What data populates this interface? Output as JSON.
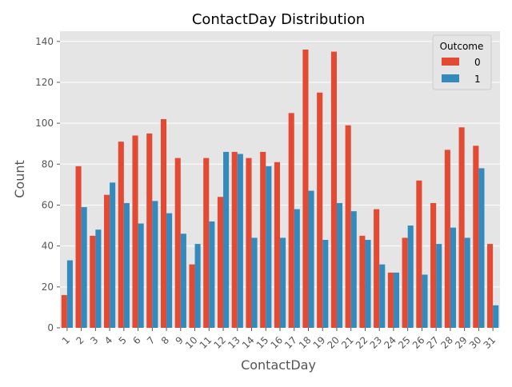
{
  "chart_data": {
    "type": "bar",
    "title": "ContactDay Distribution",
    "xlabel": "ContactDay",
    "ylabel": "Count",
    "ylim": [
      0,
      145
    ],
    "yticks": [
      0,
      20,
      40,
      60,
      80,
      100,
      120,
      140
    ],
    "categories": [
      "1",
      "2",
      "3",
      "4",
      "5",
      "6",
      "7",
      "8",
      "9",
      "10",
      "11",
      "12",
      "13",
      "14",
      "15",
      "16",
      "17",
      "18",
      "19",
      "20",
      "21",
      "22",
      "23",
      "24",
      "25",
      "26",
      "27",
      "28",
      "29",
      "30",
      "31"
    ],
    "series": [
      {
        "name": "0",
        "color": "#E24A33",
        "values": [
          16,
          79,
          45,
          65,
          91,
          94,
          95,
          102,
          83,
          31,
          83,
          64,
          86,
          83,
          86,
          81,
          105,
          136,
          115,
          135,
          99,
          45,
          58,
          27,
          44,
          72,
          61,
          87,
          98,
          89,
          41
        ]
      },
      {
        "name": "1",
        "color": "#348ABD",
        "values": [
          33,
          59,
          48,
          71,
          61,
          51,
          62,
          56,
          46,
          41,
          52,
          86,
          85,
          44,
          79,
          44,
          58,
          67,
          43,
          61,
          57,
          43,
          31,
          27,
          50,
          26,
          41,
          49,
          44,
          78,
          11
        ]
      }
    ],
    "legend": {
      "title": "Outcome",
      "position": "top-right"
    },
    "grid": true,
    "style": {
      "background": "#E5E5E5",
      "grid_color": "#FFFFFF",
      "tick_label_color": "#555555",
      "axis_label_color": "#555555",
      "title_color": "#000000"
    }
  }
}
